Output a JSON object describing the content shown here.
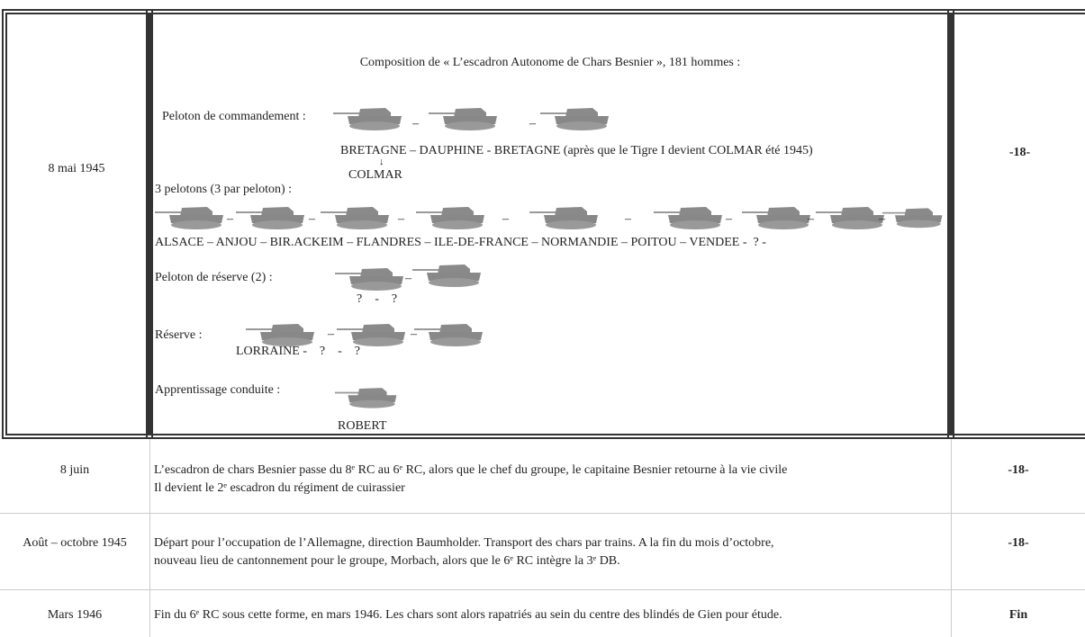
{
  "table": {
    "rows": [
      {
        "date": "8 mai 1945",
        "content": {
          "title": "Composition de « L’escadron Autonome de Chars Besnier », 181 hommes :",
          "command": {
            "label": "Peloton de commandement :",
            "separators": [
              "–",
              "–"
            ],
            "names": "BRETAGNE – DAUPHINE - BRETAGNE (après que le Tigre I devient COLMAR été 1945)",
            "note": "COLMAR"
          },
          "platoons": {
            "label": "3 pelotons (3 par peloton) :",
            "separators": [
              "–",
              "–",
              "–",
              "–",
              "–",
              "–",
              "–",
              "–"
            ],
            "names": "ALSACE – ANJOU – BIR.ACKEIM – FLANDRES – ILE-DE-FRANCE – NORMANDIE – POITOU – VENDEE -  ? -"
          },
          "reserve_platoon": {
            "label": "Peloton de réserve (2) :",
            "separators": [
              "–"
            ],
            "names": "?    -    ?"
          },
          "reserve": {
            "label": "Réserve :",
            "separators": [
              "–",
              "–"
            ],
            "names": "LORRAINE -    ?    -    ?"
          },
          "training": {
            "label": "Apprentissage conduite :",
            "names": "ROBERT"
          }
        },
        "page": "-18-"
      },
      {
        "date": "8 juin",
        "content": [
          "L’escadron de chars Besnier passe du 8ᵉ RC au 6ᵉ RC, alors que le chef du groupe, le capitaine Besnier retourne à la vie civile",
          "Il devient le 2ᵉ escadron du régiment de cuirassier"
        ],
        "page": "-18-"
      },
      {
        "date": "Août – octobre 1945",
        "content": [
          "Départ pour l’occupation de l’Allemagne, direction Baumholder. Transport des chars par trains. A la fin du mois d’octobre,",
          "nouveau lieu de cantonnement pour le groupe, Morbach, alors que le 6ᵉ RC intègre la 3ᵉ DB."
        ],
        "page": "-18-"
      },
      {
        "date": "Mars 1946",
        "content": [
          "Fin du 6ᵉ RC sous cette forme, en mars 1946. Les chars sont alors rapatriés au sein du centre des blindés de Gien pour étude."
        ],
        "page": "Fin"
      }
    ]
  }
}
